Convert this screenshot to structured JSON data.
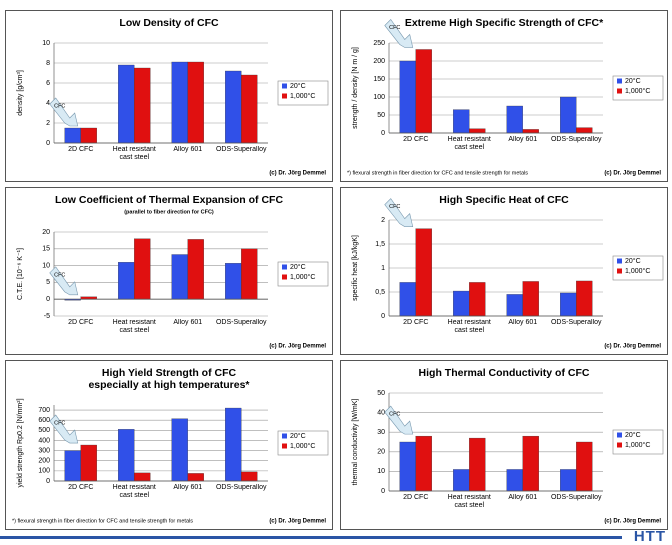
{
  "logo": "HTT",
  "chart_data": [
    {
      "type": "bar",
      "title": [
        "Low Density of CFC"
      ],
      "y_label": "density [g/cm³]",
      "annotation": "CFC",
      "copyright": "(c) Dr. Jörg Demmel",
      "categories": [
        "2D CFC",
        "Heat resistant cast steel",
        "Alloy 601",
        "ODS-Superalloy"
      ],
      "series": [
        {
          "name": "20°C",
          "color": "#3050e8",
          "values": [
            1.5,
            7.8,
            8.1,
            7.2
          ]
        },
        {
          "name": "1,000°C",
          "color": "#e01010",
          "values": [
            1.5,
            7.5,
            8.1,
            6.8
          ]
        }
      ],
      "ylim": [
        0,
        10
      ],
      "yticks": [
        0,
        2,
        4,
        6,
        8,
        10
      ],
      "grid": true
    },
    {
      "type": "bar",
      "title": [
        "Extreme High Specific Strength of CFC*"
      ],
      "y_label": "strength / density [N m / g]",
      "annotation": "CFC",
      "copyright": "(c) Dr. Jörg Demmel",
      "note": "*) flexural strength in fiber direction for CFC and tensile strength for metals",
      "categories": [
        "2D CFC",
        "Heat resistant cast steel",
        "Alloy 601",
        "ODS-Superalloy"
      ],
      "series": [
        {
          "name": "20°C",
          "color": "#3050e8",
          "values": [
            200,
            65,
            75,
            100
          ]
        },
        {
          "name": "1,000°C",
          "color": "#e01010",
          "values": [
            232,
            12,
            10,
            15
          ]
        }
      ],
      "ylim": [
        0,
        250
      ],
      "yticks": [
        0,
        50,
        100,
        150,
        200,
        250
      ],
      "grid": true
    },
    {
      "type": "bar",
      "title": [
        "Low Coefficient of Thermal Expansion of CFC"
      ],
      "subtitle": "(parallel to fiber direction for CFC)",
      "y_label": "C.T.E. [10⁻⁶ K⁻¹]",
      "annotation": "CFC",
      "copyright": "(c) Dr. Jörg Demmel",
      "categories": [
        "2D CFC",
        "Heat resistant cast steel",
        "Alloy 601",
        "ODS-Superalloy"
      ],
      "series": [
        {
          "name": "20°C",
          "color": "#3050e8",
          "values": [
            -0.3,
            11,
            13.3,
            10.7
          ]
        },
        {
          "name": "1,000°C",
          "color": "#e01010",
          "values": [
            0.7,
            18,
            17.8,
            15
          ]
        }
      ],
      "ylim": [
        -5,
        20
      ],
      "yticks": [
        -5,
        0,
        5,
        10,
        15,
        20
      ],
      "grid": true
    },
    {
      "type": "bar",
      "title": [
        "High Specific Heat of CFC"
      ],
      "y_label": "specific heat [kJ/kgK]",
      "annotation": "CFC",
      "copyright": "(c) Dr. Jörg Demmel",
      "categories": [
        "2D CFC",
        "Heat resistant cast steel",
        "Alloy 601",
        "ODS-Superalloy"
      ],
      "series": [
        {
          "name": "20°C",
          "color": "#3050e8",
          "values": [
            0.7,
            0.52,
            0.45,
            0.48
          ]
        },
        {
          "name": "1,000°C",
          "color": "#e01010",
          "values": [
            1.82,
            0.7,
            0.72,
            0.73
          ]
        }
      ],
      "ylim": [
        0,
        2
      ],
      "yticks": [
        0,
        {
          "value": 0.5,
          "label": "0,5"
        },
        1,
        {
          "value": 1.5,
          "label": "1,5"
        },
        2
      ],
      "grid": true
    },
    {
      "type": "bar",
      "title": [
        "High Yield Strength of CFC",
        "especially at high temperatures*"
      ],
      "y_label": "yield strength Rp0.2 [N/mm²]",
      "annotation": "CFC",
      "copyright": "(c) Dr. Jörg Demmel",
      "note": "*) flexural strength in fiber direction for CFC and tensile strength for metals",
      "categories": [
        "2D CFC",
        "Heat resistant cast steel",
        "Alloy 601",
        "ODS-Superalloy"
      ],
      "series": [
        {
          "name": "20°C",
          "color": "#3050e8",
          "values": [
            300,
            510,
            615,
            720
          ]
        },
        {
          "name": "1,000°C",
          "color": "#e01010",
          "values": [
            355,
            80,
            75,
            90
          ]
        }
      ],
      "ylim": [
        0,
        750
      ],
      "yticks": [
        0,
        100,
        200,
        300,
        400,
        500,
        600,
        700
      ],
      "grid": true
    },
    {
      "type": "bar",
      "title": [
        "High Thermal Conductivity of CFC"
      ],
      "y_label": "thermal conductivity [W/mK]",
      "annotation": "CFC",
      "copyright": "(c) Dr. Jörg Demmel",
      "categories": [
        "2D CFC",
        "Heat resistant cast steel",
        "Alloy 601",
        "ODS-Superalloy"
      ],
      "series": [
        {
          "name": "20°C",
          "color": "#3050e8",
          "values": [
            25,
            11,
            11,
            11
          ]
        },
        {
          "name": "1,000°C",
          "color": "#e01010",
          "values": [
            28,
            27,
            28,
            25
          ]
        }
      ],
      "ylim": [
        0,
        50
      ],
      "yticks": [
        0,
        10,
        20,
        30,
        40,
        50
      ],
      "grid": true
    }
  ]
}
